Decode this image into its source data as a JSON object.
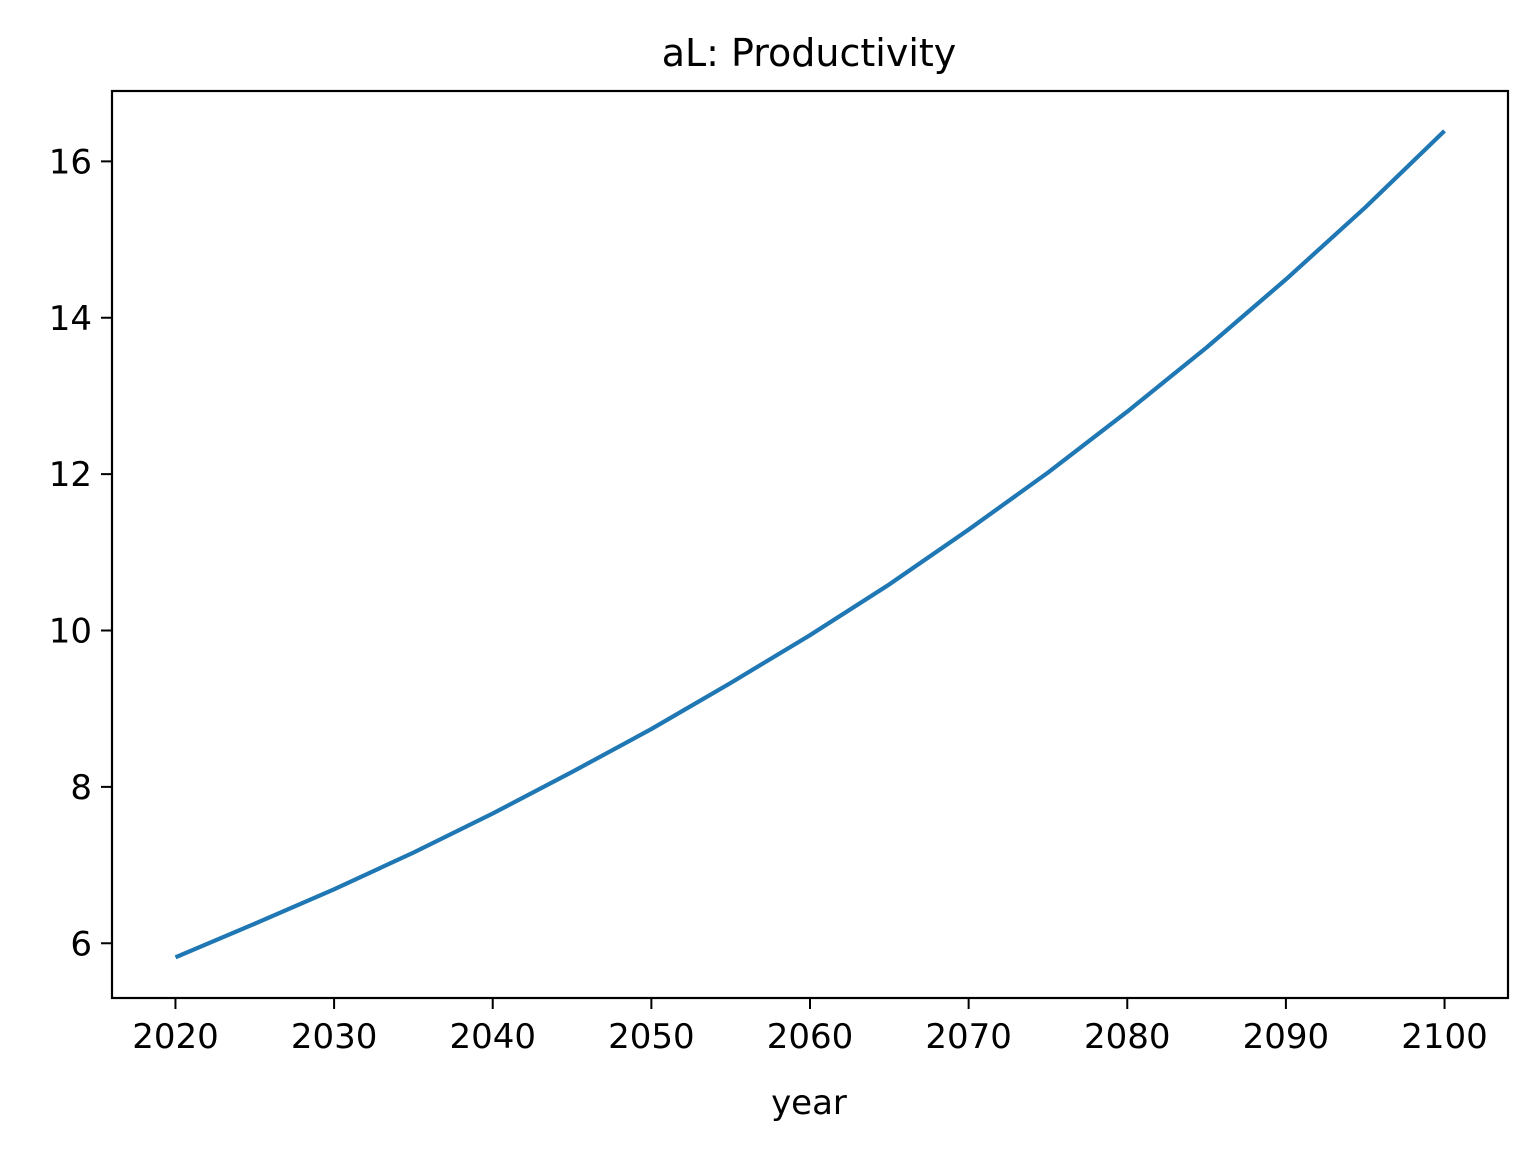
{
  "chart_data": {
    "type": "line",
    "title": "aL: Productivity",
    "xlabel": "year",
    "ylabel": "",
    "xlim": [
      2016,
      2104
    ],
    "ylim": [
      5.3,
      16.9
    ],
    "x_ticks": [
      2020,
      2030,
      2040,
      2050,
      2060,
      2070,
      2080,
      2090,
      2100
    ],
    "x_tick_labels": [
      "2020",
      "2030",
      "2040",
      "2050",
      "2060",
      "2070",
      "2080",
      "2090",
      "2100"
    ],
    "y_ticks": [
      6,
      8,
      10,
      12,
      14,
      16
    ],
    "y_tick_labels": [
      "6",
      "8",
      "10",
      "12",
      "14",
      "16"
    ],
    "grid": false,
    "series": [
      {
        "color": "#1f77b4",
        "x": [
          2020,
          2025,
          2030,
          2035,
          2040,
          2045,
          2050,
          2055,
          2060,
          2065,
          2070,
          2075,
          2080,
          2085,
          2090,
          2095,
          2100
        ],
        "y": [
          5.82,
          6.25,
          6.69,
          7.16,
          7.66,
          8.19,
          8.74,
          9.33,
          9.94,
          10.59,
          11.29,
          12.02,
          12.8,
          13.62,
          14.49,
          15.41,
          16.39
        ]
      }
    ]
  }
}
